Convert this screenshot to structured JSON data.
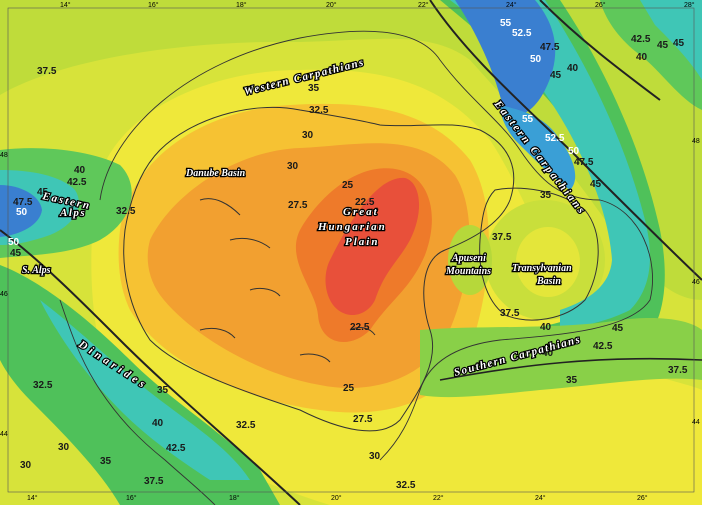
{
  "map": {
    "top_ticks": [
      "14°",
      "16°",
      "18°",
      "20°",
      "22°",
      "24°",
      "26°",
      "28°"
    ],
    "bottom_ticks": [
      "14°",
      "16°",
      "18°",
      "20°",
      "22°",
      "24°",
      "26°"
    ],
    "left_ticks": [
      "48",
      "46",
      "44"
    ],
    "right_ticks": [
      "48",
      "46",
      "44"
    ],
    "regions": {
      "western_carpathians": "Western Carpathians",
      "eastern_carpathians": "Eastern Carpathians",
      "southern_carpathians": "Southern Carpathians",
      "eastern_alps_1": "Eastern",
      "eastern_alps_2": "Alps",
      "s_alps": "S. Alps",
      "dinarides": "Dinarides",
      "danube_basin": "Danube Basin",
      "great_hungarian_1": "Great",
      "great_hungarian_2": "Hungarian",
      "great_hungarian_3": "Plain",
      "apuseni_1": "Apuseni",
      "apuseni_2": "Mountains",
      "transylvanian_1": "Transylvanian",
      "transylvanian_2": "Basin"
    },
    "contour_labels": [
      "55",
      "52.5",
      "47.5",
      "50",
      "45",
      "40",
      "42.5",
      "45",
      "45",
      "40",
      "37.5",
      "35",
      "32.5",
      "30",
      "55",
      "52.5",
      "50",
      "47.5",
      "45",
      "40",
      "42.5",
      "45",
      "47.5",
      "50",
      "32.5",
      "45",
      "50",
      "30",
      "27.5",
      "25",
      "22.5",
      "37.5",
      "35",
      "37.5",
      "40",
      "45",
      "42.5",
      "40",
      "35",
      "37.5",
      "22.5",
      "25",
      "27.5",
      "30",
      "32.5",
      "32.5",
      "35",
      "40",
      "42.5",
      "37.5",
      "30",
      "30",
      "35",
      "32.5"
    ]
  }
}
